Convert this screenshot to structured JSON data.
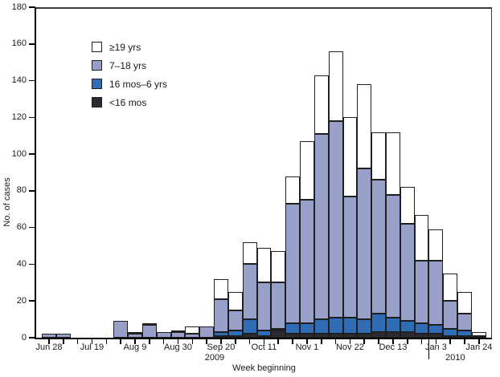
{
  "chart_data": {
    "type": "bar",
    "stacked": true,
    "xlabel": "Week beginning",
    "ylabel": "No. of cases",
    "ylim": [
      0,
      180
    ],
    "yticks": [
      0,
      20,
      40,
      60,
      80,
      100,
      120,
      140,
      160,
      180
    ],
    "grid": false,
    "legend_position": "upper-left-inside",
    "categories": [
      "Jun 28",
      "Jul 5",
      "Jul 12",
      "Jul 19",
      "Jul 26",
      "Aug 2",
      "Aug 9",
      "Aug 16",
      "Aug 23",
      "Aug 30",
      "Sep 6",
      "Sep 13",
      "Sep 20",
      "Sep 27",
      "Oct 4",
      "Oct 11",
      "Oct 18",
      "Oct 25",
      "Nov 1",
      "Nov 8",
      "Nov 15",
      "Nov 22",
      "Nov 29",
      "Dec 6",
      "Dec 13",
      "Dec 20",
      "Dec 27",
      "Jan 3",
      "Jan 10",
      "Jan 17",
      "Jan 24"
    ],
    "labeled_tick_indices": [
      0,
      3,
      6,
      9,
      12,
      15,
      18,
      21,
      24,
      27,
      30
    ],
    "series": [
      {
        "name": "<16 mos",
        "color": "#2b2b31",
        "values": [
          0,
          0,
          0,
          0,
          0,
          0,
          0,
          0,
          0,
          0,
          0,
          0,
          1,
          1,
          2,
          1,
          4,
          2,
          2,
          2,
          2,
          2,
          2,
          3,
          3,
          3,
          2,
          2,
          1,
          1,
          0
        ]
      },
      {
        "name": "16 mos–6 yrs",
        "color": "#2e6db6",
        "values": [
          0,
          0,
          0,
          0,
          0,
          0,
          0,
          0,
          0,
          0,
          0,
          0,
          2,
          3,
          8,
          3,
          1,
          6,
          6,
          8,
          9,
          9,
          8,
          10,
          8,
          6,
          6,
          5,
          4,
          3,
          0
        ]
      },
      {
        "name": "7–18 yrs",
        "color": "#96a0c9",
        "values": [
          2,
          2,
          0,
          0,
          0,
          9,
          2,
          7,
          3,
          3,
          2,
          6,
          18,
          11,
          30,
          26,
          25,
          65,
          67,
          101,
          107,
          66,
          82,
          73,
          67,
          53,
          34,
          35,
          15,
          9,
          1
        ]
      },
      {
        "name": "≥19 yrs",
        "color": "#ffffff",
        "values": [
          0,
          0,
          0,
          0,
          0,
          0,
          1,
          1,
          0,
          1,
          4,
          0,
          11,
          10,
          12,
          19,
          17,
          15,
          32,
          32,
          38,
          43,
          46,
          26,
          34,
          20,
          25,
          17,
          15,
          12,
          2
        ]
      }
    ],
    "totals": [
      2,
      2,
      0,
      0,
      0,
      9,
      3,
      8,
      3,
      4,
      6,
      6,
      32,
      25,
      52,
      49,
      47,
      88,
      107,
      143,
      156,
      120,
      138,
      112,
      112,
      82,
      67,
      59,
      35,
      25,
      3
    ],
    "legend": [
      {
        "label": "≥19 yrs",
        "color": "#ffffff"
      },
      {
        "label": "7–18 yrs",
        "color": "#96a0c9"
      },
      {
        "label": "16 mos–6 yrs",
        "color": "#2e6db6"
      },
      {
        "label": "<16 mos",
        "color": "#2b2b31"
      }
    ],
    "year_labels": [
      {
        "text": "2009",
        "anchor_category": "Sep 20"
      },
      {
        "text": "2010",
        "anchor_category": "Jan 3"
      }
    ],
    "year_divider_between": [
      "Dec 27",
      "Jan 3"
    ]
  }
}
